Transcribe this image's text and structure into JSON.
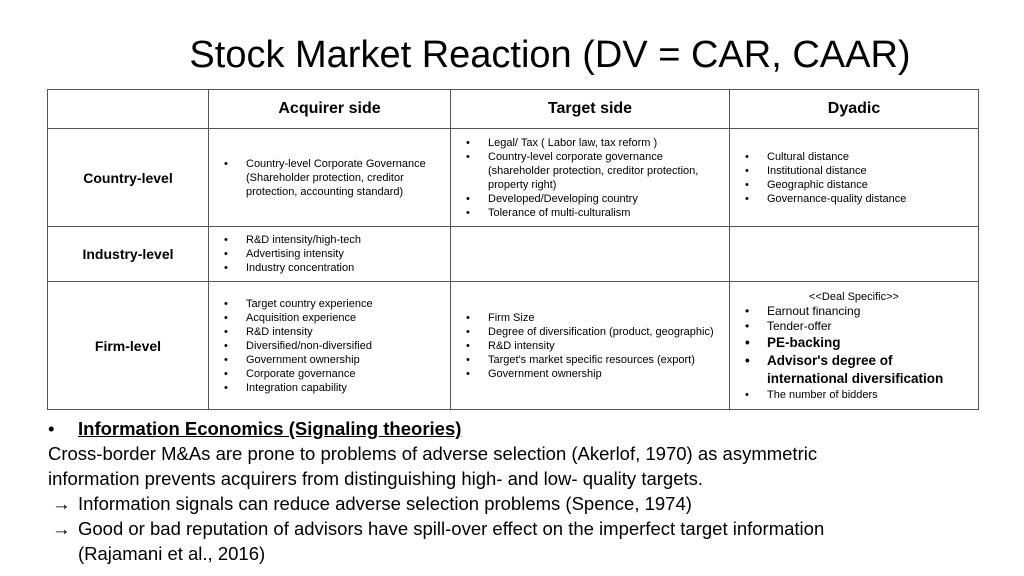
{
  "title": "Stock Market Reaction (DV = CAR, CAAR)",
  "table": {
    "headers": [
      "",
      "Acquirer side",
      "Target side",
      "Dyadic"
    ],
    "rows": [
      {
        "label": "Country-level",
        "acquirer": [
          "Country-level Corporate Governance (Shareholder protection, creditor protection, accounting standard)"
        ],
        "target": [
          "Legal/ Tax ( Labor law, tax reform )",
          "Country-level corporate governance (shareholder protection, creditor protection, property right)",
          "Developed/Developing country",
          "Tolerance of multi-culturalism"
        ],
        "dyadic": [
          "Cultural distance",
          "Institutional distance",
          "Geographic distance",
          "Governance-quality distance"
        ]
      },
      {
        "label": "Industry-level",
        "acquirer": [
          "R&D intensity/high-tech",
          "Advertising intensity",
          "Industry concentration"
        ],
        "target": [],
        "dyadic": []
      },
      {
        "label": "Firm-level",
        "acquirer": [
          "Target country experience",
          "Acquisition experience",
          "R&D intensity",
          "Diversified/non-diversified",
          "Government ownership",
          "Corporate governance",
          "Integration capability"
        ],
        "target": [
          "Firm Size",
          "Degree of diversification (product, geographic)",
          "R&D intensity",
          "Target's market specific resources (export)",
          "Government ownership"
        ],
        "dyadic_header": "<<Deal Specific>>",
        "dyadic": [
          "Earnout financing",
          "Tender-offer",
          "PE-backing",
          "Advisor's degree of international diversification",
          "The number of bidders"
        ]
      }
    ]
  },
  "notes": {
    "bullet": "•",
    "heading": "Information Economics (Signaling theories)",
    "line1": "Cross-border M&As are prone to problems of adverse selection (Akerlof, 1970) as asymmetric",
    "line2": "information prevents acquirers from distinguishing high- and low- quality targets.",
    "arrow": "→",
    "point1": "Information signals can reduce adverse selection problems (Spence, 1974)",
    "point2": "Good or bad reputation of advisors have spill-over effect on the imperfect target information",
    "point2_cont": "(Rajamani et al., 2016)"
  }
}
